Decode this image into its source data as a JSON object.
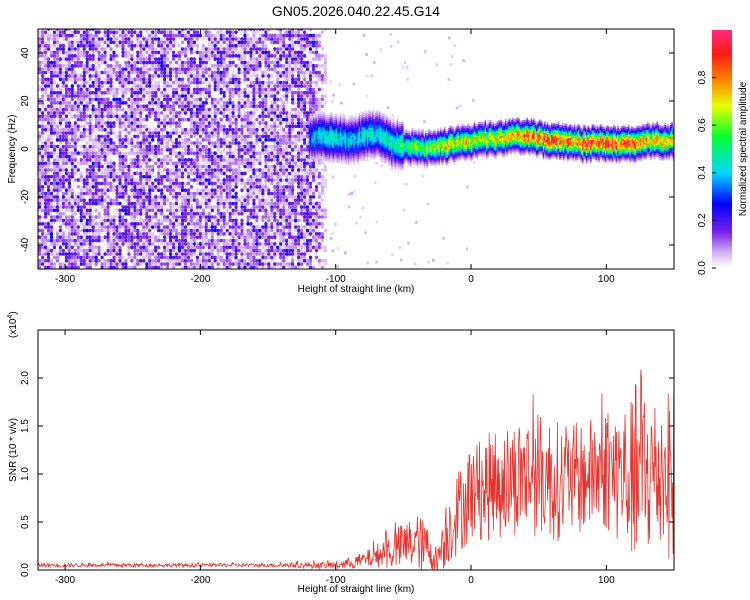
{
  "figure_title": "GN05.2026.040.22.45.G14",
  "chart_data": [
    {
      "type": "heatmap",
      "title": "GN05.2026.040.22.45.G14",
      "xlabel": "Height of straight line (km)",
      "ylabel": "Frequency (Hz)",
      "xlim": [
        -320,
        150
      ],
      "ylim": [
        -50,
        50
      ],
      "x_ticks": [
        -300,
        -200,
        -100,
        0,
        100
      ],
      "x_tick_labels": [
        "-300",
        "-200",
        "-100",
        "0",
        "100"
      ],
      "y_ticks": [
        -40,
        -20,
        0,
        20,
        40
      ],
      "y_tick_labels": [
        "-40",
        "-20",
        "0",
        "20",
        "40"
      ],
      "colorbar": {
        "label": "Normalized spectral amplitude",
        "range": [
          0,
          1
        ],
        "ticks": [
          0.0,
          0.2,
          0.4,
          0.6,
          0.8
        ],
        "tick_labels": [
          "0.0",
          "0.2",
          "0.4",
          "0.6",
          "0.8"
        ],
        "colormap": "rainbow (white-violet-blue-cyan-green-yellow-red-magenta)"
      },
      "noise_region_x": [
        -320,
        -105
      ],
      "ridge": {
        "x": [
          -120,
          -110,
          -100,
          -90,
          -80,
          -70,
          -60,
          -50,
          -40,
          -30,
          -20,
          -10,
          0,
          10,
          20,
          30,
          40,
          50,
          60,
          70,
          80,
          90,
          100,
          110,
          120,
          130,
          140,
          150
        ],
        "frequency": [
          4,
          5,
          4,
          3,
          5,
          6,
          2,
          1,
          0,
          0,
          1,
          2,
          3,
          4,
          4,
          5,
          5,
          4,
          3,
          3,
          2,
          2,
          2,
          2,
          2,
          3,
          3,
          3
        ],
        "amplitude": [
          0.35,
          0.45,
          0.45,
          0.4,
          0.45,
          0.45,
          0.5,
          0.55,
          0.6,
          0.65,
          0.7,
          0.72,
          0.72,
          0.7,
          0.72,
          0.75,
          0.78,
          0.85,
          0.9,
          0.85,
          0.85,
          0.9,
          0.9,
          0.85,
          0.85,
          0.8,
          0.75,
          0.7
        ]
      }
    },
    {
      "type": "line",
      "xlabel": "Height of straight line (km)",
      "ylabel": "SNR (10 * v/v)",
      "y_scale_label": "(x10",
      "y_scale_exponent": "4",
      "y_scale_suffix": ")",
      "xlim": [
        -320,
        150
      ],
      "ylim": [
        0,
        2.5
      ],
      "x_ticks": [
        -300,
        -200,
        -100,
        0,
        100
      ],
      "x_tick_labels": [
        "-300",
        "-200",
        "-100",
        "0",
        "100"
      ],
      "y_ticks": [
        0.0,
        0.5,
        1.0,
        1.5,
        2.0
      ],
      "y_tick_labels": [
        "0.0",
        "0.5",
        "1.0",
        "1.5",
        "2.0"
      ],
      "series": [
        {
          "name": "SNR",
          "color": "#e8342e",
          "x": [
            -320,
            -300,
            -250,
            -200,
            -150,
            -120,
            -100,
            -90,
            -80,
            -70,
            -60,
            -50,
            -40,
            -30,
            -25,
            -20,
            -10,
            0,
            10,
            20,
            30,
            40,
            50,
            60,
            70,
            80,
            90,
            100,
            110,
            120,
            125,
            130,
            140,
            150
          ],
          "mean": [
            0.05,
            0.05,
            0.05,
            0.05,
            0.05,
            0.05,
            0.05,
            0.07,
            0.1,
            0.15,
            0.2,
            0.25,
            0.3,
            0.2,
            0.1,
            0.35,
            0.6,
            0.8,
            0.85,
            0.9,
            0.95,
            1.0,
            1.0,
            0.95,
            0.9,
            0.95,
            1.0,
            1.05,
            1.0,
            0.95,
            1.0,
            1.0,
            1.0,
            1.0
          ],
          "amplitude": [
            0.02,
            0.02,
            0.02,
            0.02,
            0.02,
            0.03,
            0.04,
            0.06,
            0.08,
            0.12,
            0.2,
            0.25,
            0.3,
            0.25,
            0.1,
            0.35,
            0.45,
            0.5,
            0.55,
            0.6,
            0.6,
            0.65,
            0.65,
            0.65,
            0.6,
            0.6,
            0.6,
            0.65,
            0.75,
            0.85,
            1.35,
            0.9,
            0.85,
            0.9
          ]
        }
      ]
    }
  ]
}
